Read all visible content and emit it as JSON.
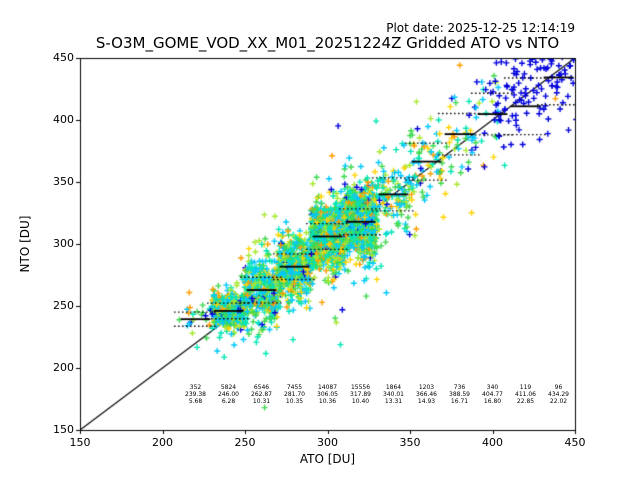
{
  "chart_data": {
    "type": "scatter",
    "title": "S-O3M_GOME_VOD_XX_M01_20251224Z Gridded ATO vs NTO",
    "plot_date": "Plot date: 2025-12-25 12:14:19",
    "xlabel": "ATO [DU]",
    "ylabel": "NTO [DU]",
    "xlim": [
      150,
      450
    ],
    "ylim": [
      150,
      450
    ],
    "xticks": [
      150,
      200,
      250,
      300,
      350,
      400,
      450
    ],
    "yticks": [
      150,
      200,
      250,
      300,
      350,
      400,
      450
    ],
    "grid": false,
    "identity_line": {
      "from": [
        150,
        150
      ],
      "to": [
        450,
        450
      ]
    },
    "marker": "plus",
    "bin_width": 20,
    "legend_position": "none",
    "bins": [
      {
        "center": 220,
        "count": 352,
        "mean": 239.38,
        "std": 5.68
      },
      {
        "center": 240,
        "count": 5824,
        "mean": 246.0,
        "std": 6.28
      },
      {
        "center": 260,
        "count": 6546,
        "mean": 262.87,
        "std": 10.31
      },
      {
        "center": 280,
        "count": 7455,
        "mean": 281.7,
        "std": 10.35
      },
      {
        "center": 300,
        "count": 14087,
        "mean": 306.05,
        "std": 10.36
      },
      {
        "center": 320,
        "count": 15556,
        "mean": 317.89,
        "std": 10.4
      },
      {
        "center": 340,
        "count": 1864,
        "mean": 340.01,
        "std": 13.31
      },
      {
        "center": 360,
        "count": 1203,
        "mean": 366.46,
        "std": 14.93
      },
      {
        "center": 380,
        "count": 736,
        "mean": 388.59,
        "std": 16.71
      },
      {
        "center": 400,
        "count": 340,
        "mean": 404.77,
        "std": 16.8
      },
      {
        "center": 420,
        "count": 119,
        "mean": 411.06,
        "std": 22.85
      },
      {
        "center": 440,
        "count": 96,
        "mean": 434.29,
        "std": 22.02
      }
    ],
    "palette": {
      "blue": "#0000dd",
      "cyan": "#00c8ff",
      "turquoise": "#00e6b4",
      "green": "#3fd94f",
      "yellowgreen": "#a8e832",
      "yellow": "#ffd400",
      "orange": "#ff9d00"
    },
    "frame_color": "#000000",
    "line_color": "#000000",
    "background": "#ffffff"
  }
}
